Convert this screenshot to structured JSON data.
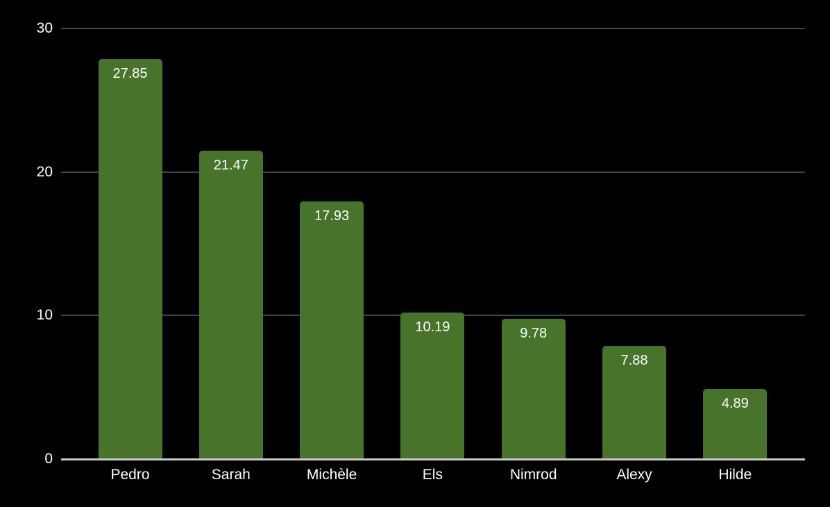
{
  "chart_data": {
    "type": "bar",
    "categories": [
      "Pedro",
      "Sarah",
      "Michèle",
      "Els",
      "Nimrod",
      "Alexy",
      "Hilde"
    ],
    "values": [
      27.85,
      21.47,
      17.93,
      10.19,
      9.78,
      7.88,
      4.89
    ],
    "value_labels": [
      "27.85",
      "21.47",
      "17.93",
      "10.19",
      "9.78",
      "7.88",
      "4.89"
    ],
    "title": "",
    "xlabel": "",
    "ylabel": "",
    "ylim": [
      0,
      30
    ],
    "yticks": [
      0,
      10,
      20,
      30
    ],
    "ytick_labels": [
      "0",
      "10",
      "20",
      "30"
    ],
    "grid": true,
    "legend": false,
    "value_label_position": "inside-top",
    "colors": {
      "background": "#000000",
      "bar": "#47732b",
      "gridline": "#454545",
      "axis_line": "#c9c9c9",
      "text": "#ffffff"
    }
  }
}
